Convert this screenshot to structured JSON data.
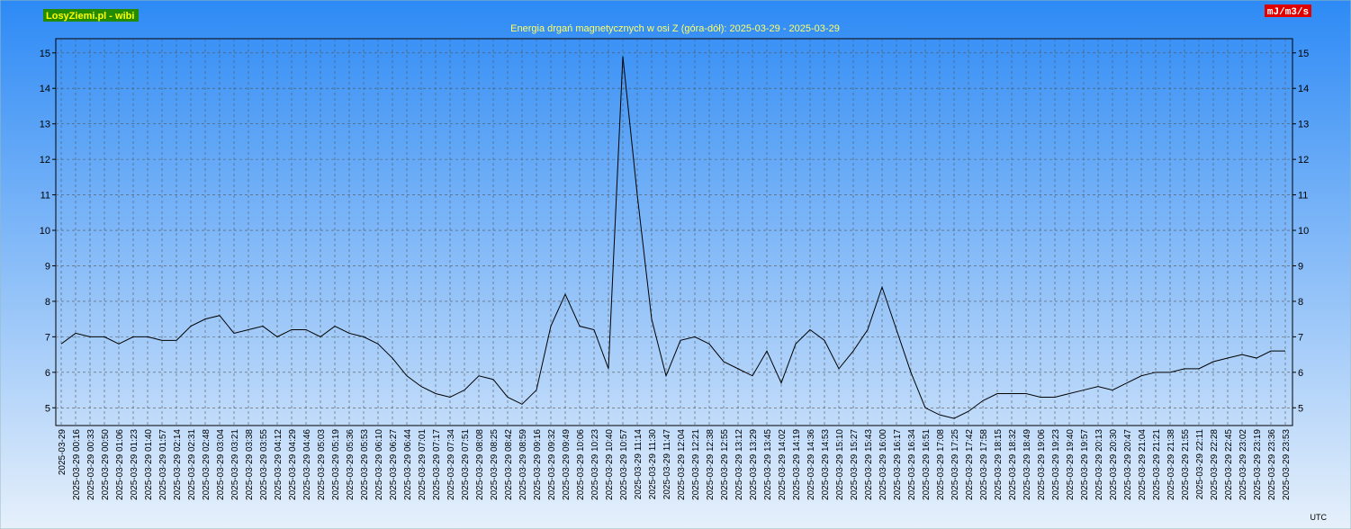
{
  "chart_data": {
    "type": "line",
    "brand": "LosyZiemi.pl - wibi",
    "title": "Energia drgań magnetycznych w osi Z (góra-dół): 2025-03-29 - 2025-03-29",
    "unit": "mJ/m3/s",
    "x_note": "UTC",
    "x": [
      "2025-03-29",
      "2025-03-29 00:16",
      "2025-03-29 00:33",
      "2025-03-29 00:50",
      "2025-03-29 01:06",
      "2025-03-29 01:23",
      "2025-03-29 01:40",
      "2025-03-29 01:57",
      "2025-03-29 02:14",
      "2025-03-29 02:31",
      "2025-03-29 02:48",
      "2025-03-29 03:04",
      "2025-03-29 03:21",
      "2025-03-29 03:38",
      "2025-03-29 03:55",
      "2025-03-29 04:12",
      "2025-03-29 04:29",
      "2025-03-29 04:46",
      "2025-03-29 05:03",
      "2025-03-29 05:19",
      "2025-03-29 05:36",
      "2025-03-29 05:53",
      "2025-03-29 06:10",
      "2025-03-29 06:27",
      "2025-03-29 06:44",
      "2025-03-29 07:01",
      "2025-03-29 07:17",
      "2025-03-29 07:34",
      "2025-03-29 07:51",
      "2025-03-29 08:08",
      "2025-03-29 08:25",
      "2025-03-29 08:42",
      "2025-03-29 08:59",
      "2025-03-29 09:16",
      "2025-03-29 09:32",
      "2025-03-29 09:49",
      "2025-03-29 10:06",
      "2025-03-29 10:23",
      "2025-03-29 10:40",
      "2025-03-29 10:57",
      "2025-03-29 11:14",
      "2025-03-29 11:30",
      "2025-03-29 11:47",
      "2025-03-29 12:04",
      "2025-03-29 12:21",
      "2025-03-29 12:38",
      "2025-03-29 12:55",
      "2025-03-29 13:12",
      "2025-03-29 13:29",
      "2025-03-29 13:45",
      "2025-03-29 14:02",
      "2025-03-29 14:19",
      "2025-03-29 14:36",
      "2025-03-29 14:53",
      "2025-03-29 15:10",
      "2025-03-29 15:27",
      "2025-03-29 15:43",
      "2025-03-29 16:00",
      "2025-03-29 16:17",
      "2025-03-29 16:34",
      "2025-03-29 16:51",
      "2025-03-29 17:08",
      "2025-03-29 17:25",
      "2025-03-29 17:42",
      "2025-03-29 17:58",
      "2025-03-29 18:15",
      "2025-03-29 18:32",
      "2025-03-29 18:49",
      "2025-03-29 19:06",
      "2025-03-29 19:23",
      "2025-03-29 19:40",
      "2025-03-29 19:57",
      "2025-03-29 20:13",
      "2025-03-29 20:30",
      "2025-03-29 20:47",
      "2025-03-29 21:04",
      "2025-03-29 21:21",
      "2025-03-29 21:38",
      "2025-03-29 21:55",
      "2025-03-29 22:11",
      "2025-03-29 22:28",
      "2025-03-29 22:45",
      "2025-03-29 23:02",
      "2025-03-29 23:19",
      "2025-03-29 23:36",
      "2025-03-29 23:53"
    ],
    "series": [
      {
        "color": "#000000",
        "values": [
          6.8,
          7.1,
          7.0,
          7.0,
          6.8,
          7.0,
          7.0,
          6.9,
          6.9,
          7.3,
          7.5,
          7.6,
          7.1,
          7.2,
          7.3,
          7.0,
          7.2,
          7.2,
          7.0,
          7.3,
          7.1,
          7.0,
          6.8,
          6.4,
          5.9,
          5.6,
          5.4,
          5.3,
          5.5,
          5.9,
          5.8,
          5.3,
          5.1,
          5.5,
          7.3,
          8.2,
          7.3,
          7.2,
          6.1,
          14.9,
          11.0,
          7.5,
          5.9,
          6.9,
          7.0,
          6.8,
          6.3,
          6.1,
          5.9,
          6.6,
          5.7,
          6.8,
          7.2,
          6.9,
          6.1,
          6.6,
          7.2,
          8.4,
          7.2,
          6.0,
          5.0,
          4.8,
          4.7,
          4.9,
          5.2,
          5.4,
          5.4,
          5.4,
          5.3,
          5.3,
          5.4,
          5.5,
          5.6,
          5.5,
          5.7,
          5.9,
          6.0,
          6.0,
          6.1,
          6.1,
          6.3,
          6.4,
          6.5,
          6.4,
          6.6,
          6.6
        ]
      }
    ],
    "ylim": [
      4.5,
      15.4
    ],
    "yticks": [
      5,
      6,
      7,
      8,
      9,
      10,
      11,
      12,
      13,
      14,
      15
    ],
    "grid": true
  }
}
